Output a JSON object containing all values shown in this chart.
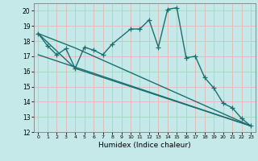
{
  "xlabel": "Humidex (Indice chaleur)",
  "xlim": [
    -0.5,
    23.5
  ],
  "ylim": [
    12,
    20.5
  ],
  "yticks": [
    12,
    13,
    14,
    15,
    16,
    17,
    18,
    19,
    20
  ],
  "xticks": [
    0,
    1,
    2,
    3,
    4,
    5,
    6,
    7,
    8,
    9,
    10,
    11,
    12,
    13,
    14,
    15,
    16,
    17,
    18,
    19,
    20,
    21,
    22,
    23
  ],
  "background_color": "#c5e8e8",
  "grid_color": "#e8b8b8",
  "line_color": "#1a7070",
  "line_width": 1.0,
  "marker_size": 4,
  "jagged_x": [
    0,
    1,
    2,
    3,
    4,
    5,
    6,
    7,
    8,
    10,
    11,
    12,
    13,
    14,
    15,
    16,
    17,
    18,
    19,
    20,
    21,
    22,
    23
  ],
  "jagged_y": [
    18.5,
    17.7,
    17.1,
    17.5,
    16.2,
    17.6,
    17.4,
    17.1,
    17.8,
    18.8,
    18.8,
    19.4,
    17.6,
    20.1,
    20.2,
    16.9,
    17.0,
    15.6,
    14.9,
    13.9,
    13.6,
    12.9,
    12.4
  ],
  "trend1_x": [
    0,
    4,
    23
  ],
  "trend1_y": [
    18.5,
    17.55,
    12.4
  ],
  "trend2_x": [
    0,
    4,
    23
  ],
  "trend2_y": [
    18.5,
    16.2,
    12.4
  ],
  "trend3_x": [
    0,
    23
  ],
  "trend3_y": [
    17.1,
    12.4
  ]
}
